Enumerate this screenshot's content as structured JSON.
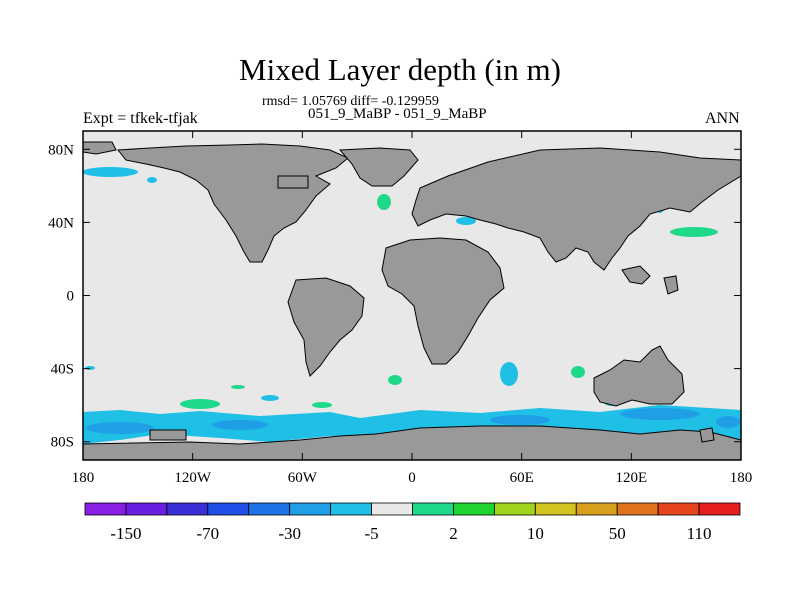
{
  "title": "Mixed Layer depth (in m)",
  "stats": "rmsd= 1.05769 diff= -0.129959",
  "subtitle": "051_9_MaBP - 051_9_MaBP",
  "expt": "Expt = tfkek-tfjak",
  "period": "ANN",
  "map": {
    "projection": "cylindrical-equidistant",
    "lon_range": [
      -180,
      180
    ],
    "lat_range": [
      -90,
      90
    ],
    "land_color": "#999999",
    "ocean_color": "#e8e8e8",
    "lat_ticks": [
      {
        "value": 80,
        "label": "80N"
      },
      {
        "value": 40,
        "label": "40N"
      },
      {
        "value": 0,
        "label": "0"
      },
      {
        "value": -40,
        "label": "40S"
      },
      {
        "value": -80,
        "label": "80S"
      }
    ],
    "lon_ticks": [
      {
        "value": -180,
        "label": "180"
      },
      {
        "value": -120,
        "label": "120W"
      },
      {
        "value": -60,
        "label": "60W"
      },
      {
        "value": 0,
        "label": "0"
      },
      {
        "value": 60,
        "label": "60E"
      },
      {
        "value": 120,
        "label": "120E"
      },
      {
        "value": 180,
        "label": "180"
      }
    ]
  },
  "colorbar": {
    "colors": [
      "#8a1fe6",
      "#6a1ee0",
      "#3a2fd6",
      "#1f4fe6",
      "#1e74e6",
      "#1e9fe6",
      "#20bfe6",
      "#e8e8e8",
      "#1ed98a",
      "#1fd431",
      "#a0d41e",
      "#d2c31e",
      "#d9a01e",
      "#e0741e",
      "#e6451e",
      "#e61e1e"
    ],
    "labels": [
      {
        "index": 1,
        "text": "-150"
      },
      {
        "index": 3,
        "text": "-70"
      },
      {
        "index": 5,
        "text": "-30"
      },
      {
        "index": 7,
        "text": "-5"
      },
      {
        "index": 9,
        "text": "2"
      },
      {
        "index": 11,
        "text": "10"
      },
      {
        "index": 13,
        "text": "50"
      },
      {
        "index": 15,
        "text": "110"
      }
    ]
  }
}
